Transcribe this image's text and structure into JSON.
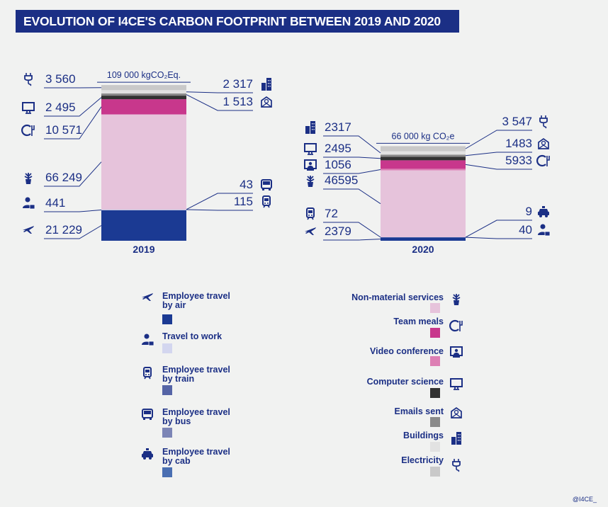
{
  "title": "EVOLUTION OF I4CE'S CARBON FOOTPRINT BETWEEN 2019 AND 2020",
  "credit": "@I4CE_",
  "chart_data": [
    {
      "type": "bar",
      "stacked": true,
      "category": "2019",
      "total_label": "109 000 kgCO₂Eq.",
      "order_bottom_to_top": [
        "air",
        "work",
        "train",
        "bus",
        "non_material",
        "meals",
        "video",
        "computer",
        "emails",
        "buildings",
        "electricity"
      ],
      "values": {
        "air": 21229,
        "work": 441,
        "train": 115,
        "bus": 43,
        "cab": 0,
        "non_material": 66249,
        "meals": 10571,
        "video": 0,
        "computer": 2495,
        "emails": 1513,
        "buildings": 2317,
        "electricity": 3560
      },
      "value_labels": {
        "electricity": "3 560",
        "computer": "2 495",
        "meals": "10 571",
        "non_material": "66 249",
        "work": "441",
        "air": "21 229",
        "buildings": "2 317",
        "emails": "1 513",
        "bus": "43",
        "train": "115"
      }
    },
    {
      "type": "bar",
      "stacked": true,
      "category": "2020",
      "total_label": "66 000 kg CO₂e",
      "order_bottom_to_top": [
        "air",
        "work",
        "cab",
        "train",
        "non_material",
        "video",
        "meals",
        "computer",
        "emails",
        "buildings",
        "electricity"
      ],
      "values": {
        "air": 2379,
        "work": 40,
        "train": 72,
        "bus": 0,
        "cab": 9,
        "non_material": 46595,
        "meals": 5933,
        "video": 1056,
        "computer": 2495,
        "emails": 1483,
        "buildings": 2317,
        "electricity": 3547
      },
      "value_labels": {
        "buildings": "2317",
        "computer": "2495",
        "video": "1056",
        "non_material": "46595",
        "train": "72",
        "air": "2379",
        "electricity": "3 547",
        "emails": "1483",
        "meals": "5933",
        "cab": "9",
        "work": "40"
      }
    }
  ],
  "categories": {
    "air": {
      "color": "#1b3a93",
      "icon": "plane-icon"
    },
    "work": {
      "color": "#d3d6ef",
      "icon": "commuter-icon"
    },
    "train": {
      "color": "#5564a6",
      "icon": "train-icon"
    },
    "bus": {
      "color": "#7c85b6",
      "icon": "bus-icon"
    },
    "cab": {
      "color": "#4a6fb2",
      "icon": "taxi-icon"
    },
    "non_material": {
      "color": "#e6c3db",
      "icon": "plant-icon"
    },
    "meals": {
      "color": "#c8378c",
      "icon": "meal-icon"
    },
    "video": {
      "color": "#dd7fb4",
      "icon": "video-conference-icon"
    },
    "computer": {
      "color": "#323232",
      "icon": "monitor-icon"
    },
    "emails": {
      "color": "#8a8a8a",
      "icon": "email-icon"
    },
    "buildings": {
      "color": "#e2e2e2",
      "icon": "building-icon"
    },
    "electricity": {
      "color": "#c9c9c9",
      "icon": "plug-icon"
    }
  },
  "legend": {
    "air": [
      "Employee travel",
      "by air"
    ],
    "work": [
      "Travel to work"
    ],
    "train": [
      "Employee travel",
      "by train"
    ],
    "bus": [
      "Employee travel",
      "by bus"
    ],
    "cab": [
      "Employee travel",
      "by cab"
    ],
    "non_material": [
      "Non-material services"
    ],
    "meals": [
      "Team meals"
    ],
    "video": [
      "Video conference"
    ],
    "computer": [
      "Computer science"
    ],
    "emails": [
      "Emails sent"
    ],
    "buildings": [
      "Buildings"
    ],
    "electricity": [
      "Electricity"
    ]
  }
}
